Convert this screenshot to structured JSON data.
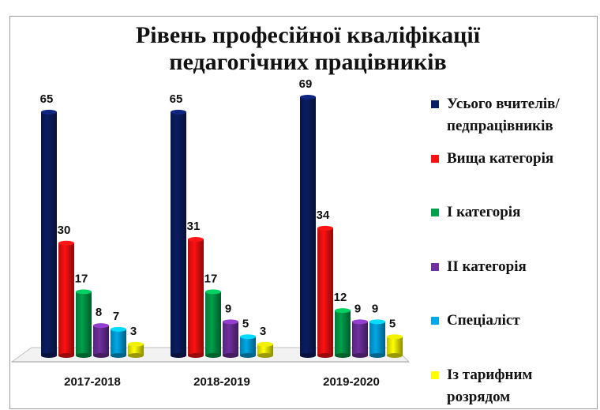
{
  "chart_data": {
    "type": "bar3d",
    "title": "Рівень професійної кваліфікації педагогічних працівників",
    "categories": [
      "2017-2018",
      "2018-2019",
      "2019-2020"
    ],
    "series": [
      {
        "name": "Усього вчителів/ педпрацівників",
        "color": "#0b1d63",
        "values": [
          65,
          65,
          69
        ]
      },
      {
        "name": "Вища категорія",
        "color": "#ff1010",
        "values": [
          30,
          31,
          34
        ]
      },
      {
        "name": "І категорія",
        "color": "#00a14b",
        "values": [
          17,
          17,
          12
        ]
      },
      {
        "name": "ІІ категорія",
        "color": "#7030a0",
        "values": [
          8,
          9,
          9
        ]
      },
      {
        "name": "Спеціаліст",
        "color": "#00a8e8",
        "values": [
          7,
          5,
          9
        ]
      },
      {
        "name": "Із тарифним розрядом",
        "color": "#ffff00",
        "values": [
          3,
          3,
          5
        ]
      }
    ]
  }
}
